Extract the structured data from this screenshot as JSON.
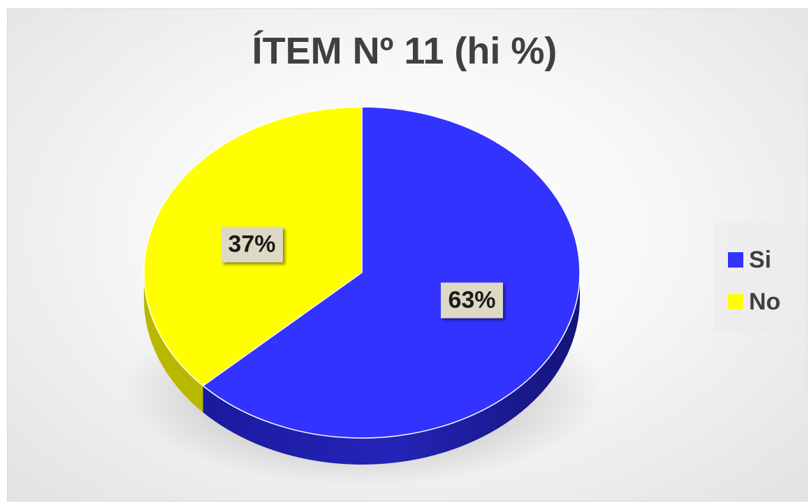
{
  "chart_data": {
    "type": "pie",
    "title": "ÍTEM Nº 11 (hi %)",
    "categories": [
      "Si",
      "No"
    ],
    "values": [
      63,
      37
    ],
    "data_labels": [
      "63%",
      "37%"
    ],
    "colors": [
      "#3333ff",
      "#ffff00"
    ],
    "legend_position": "right",
    "style": "3d"
  }
}
